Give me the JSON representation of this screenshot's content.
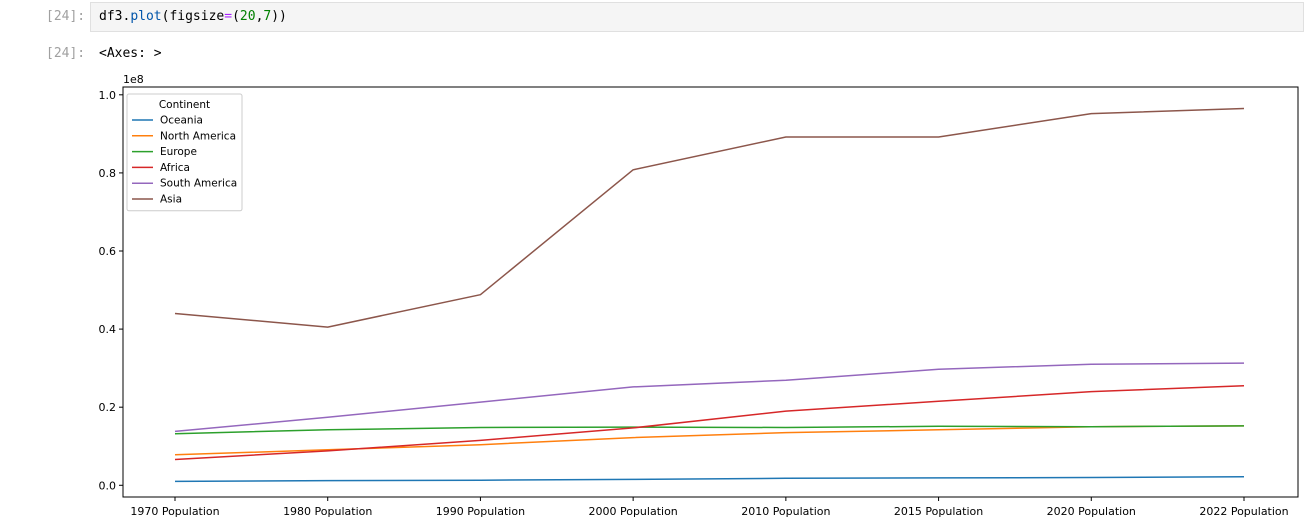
{
  "cell": {
    "in_prompt": "[24]:",
    "out_prompt": "[24]:",
    "code_obj": "df3",
    "code_dot": ".",
    "code_method": "plot",
    "code_open": "(figsize",
    "code_eq": "=",
    "code_paren": "(",
    "code_n1": "20",
    "code_comma": ",",
    "code_n2": "7",
    "code_close": "))",
    "output_text": "<Axes: >"
  },
  "chart_data": {
    "type": "line",
    "categories": [
      "1970 Population",
      "1980 Population",
      "1990 Population",
      "2000 Population",
      "2010 Population",
      "2015 Population",
      "2020 Population",
      "2022 Population"
    ],
    "scale_label": "1e8",
    "ylim": [
      -0.03,
      1.02
    ],
    "yticks": [
      0.0,
      0.2,
      0.4,
      0.6,
      0.8,
      1.0
    ],
    "ytick_labels": [
      "0.0",
      "0.2",
      "0.4",
      "0.6",
      "0.8",
      "1.0"
    ],
    "grid": false,
    "legend": {
      "title": "Continent",
      "placement": "top-left"
    },
    "series": [
      {
        "name": "Oceania",
        "color": "#1f77b4",
        "values": [
          0.01,
          0.012,
          0.013,
          0.015,
          0.018,
          0.019,
          0.02,
          0.022
        ]
      },
      {
        "name": "North America",
        "color": "#ff7f0e",
        "values": [
          0.078,
          0.091,
          0.104,
          0.122,
          0.135,
          0.142,
          0.15,
          0.152
        ]
      },
      {
        "name": "Europe",
        "color": "#2ca02c",
        "values": [
          0.132,
          0.142,
          0.148,
          0.149,
          0.148,
          0.151,
          0.15,
          0.152
        ]
      },
      {
        "name": "Africa",
        "color": "#d62728",
        "values": [
          0.066,
          0.088,
          0.115,
          0.147,
          0.19,
          0.215,
          0.24,
          0.255
        ]
      },
      {
        "name": "South America",
        "color": "#9467bd",
        "values": [
          0.138,
          0.174,
          0.213,
          0.252,
          0.269,
          0.297,
          0.31,
          0.313
        ]
      },
      {
        "name": "Asia",
        "color": "#8c564b",
        "values": [
          0.44,
          0.405,
          0.488,
          0.808,
          0.892,
          0.892,
          0.952,
          0.965
        ]
      }
    ]
  }
}
